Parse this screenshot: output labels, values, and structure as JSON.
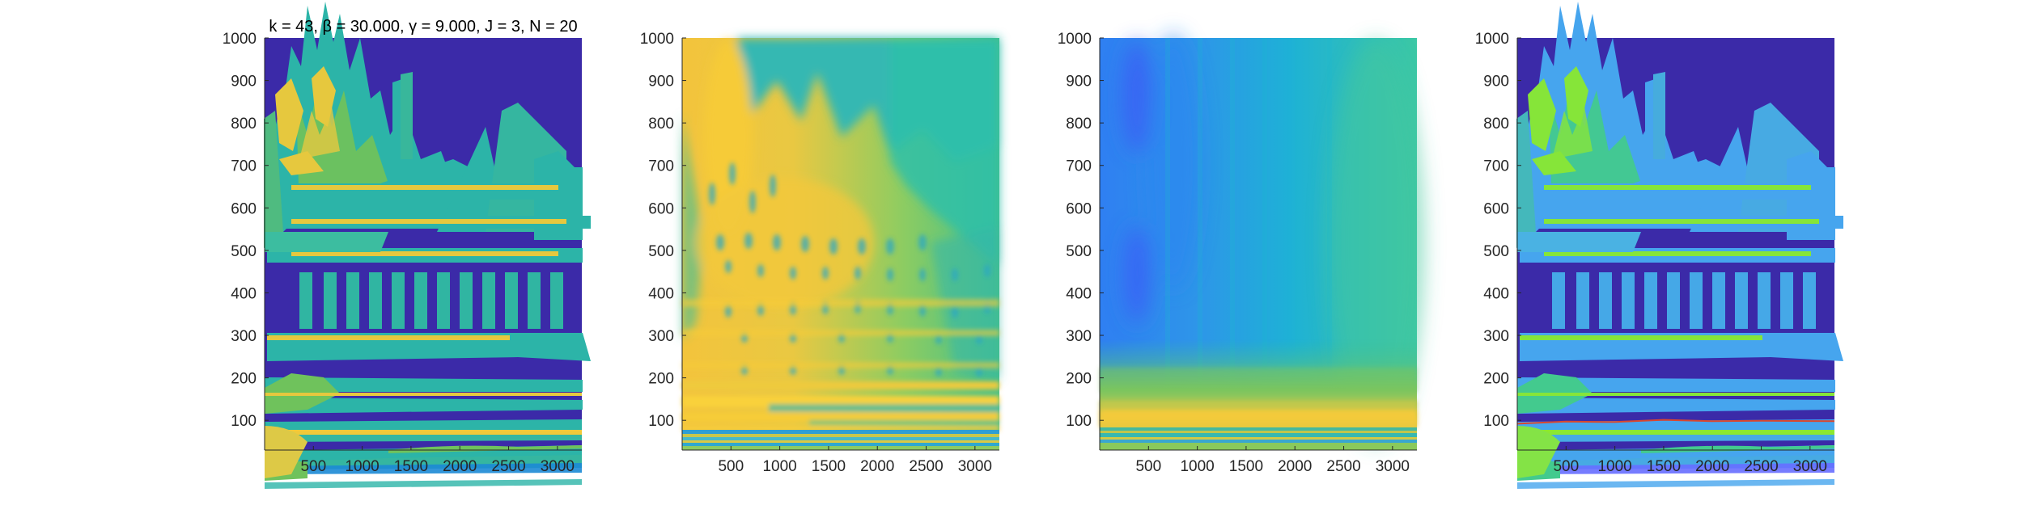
{
  "figure": {
    "title": "k = 43, β = 30.000, γ = 9.000, J = 3, N = 20",
    "colors": {
      "background": "#3b2aa8",
      "teal": "#2bb5a6",
      "green": "#6cc35a",
      "yellow": "#f1c93b",
      "blue": "#3d8ef0",
      "red": "#d9472f"
    }
  },
  "chart_data": [
    {
      "type": "heatmap",
      "panel": 1,
      "title": "k = 43, β = 30.000, γ = 9.000, J = 3, N = 20",
      "xlim": [
        0,
        3250
      ],
      "ylim": [
        30,
        1000
      ],
      "x_ticks": [
        500,
        1000,
        1500,
        2000,
        2500,
        3000
      ],
      "y_ticks": [
        100,
        200,
        300,
        400,
        500,
        600,
        700,
        800,
        900,
        1000
      ],
      "colormap": "parula",
      "description_of_content": "sparse thresholded spectrogram: harmonic bands near 100, 200, 290, 390 with energy up to ~850 for x<2300"
    },
    {
      "type": "heatmap",
      "panel": 2,
      "xlim": [
        0,
        3250
      ],
      "ylim": [
        30,
        1000
      ],
      "x_ticks": [
        500,
        1000,
        1500,
        2000,
        2500,
        3000
      ],
      "y_ticks": [
        100,
        200,
        300,
        400,
        500,
        600,
        700,
        800,
        900,
        1000
      ],
      "colormap": "parula"
    },
    {
      "type": "heatmap",
      "panel": 3,
      "xlim": [
        0,
        3250
      ],
      "ylim": [
        30,
        1000
      ],
      "x_ticks": [
        500,
        1000,
        1500,
        2000,
        2500,
        3000
      ],
      "y_ticks": [
        100,
        200,
        300,
        400,
        500,
        600,
        700,
        800,
        900,
        1000
      ],
      "colormap": "parula"
    },
    {
      "type": "heatmap",
      "panel": 4,
      "xlim": [
        0,
        3250
      ],
      "ylim": [
        30,
        1000
      ],
      "x_ticks": [
        500,
        1000,
        1500,
        2000,
        2500,
        3000
      ],
      "y_ticks": [
        100,
        200,
        300,
        400,
        500,
        600,
        700,
        800,
        900,
        1000
      ],
      "colormap": "parula",
      "overlay_line": {
        "color": "#d9472f",
        "x": [
          0,
          500,
          1000,
          1500,
          2000,
          2500,
          3250
        ],
        "y": [
          92,
          97,
          96,
          101,
          98,
          99,
          98
        ]
      }
    }
  ]
}
